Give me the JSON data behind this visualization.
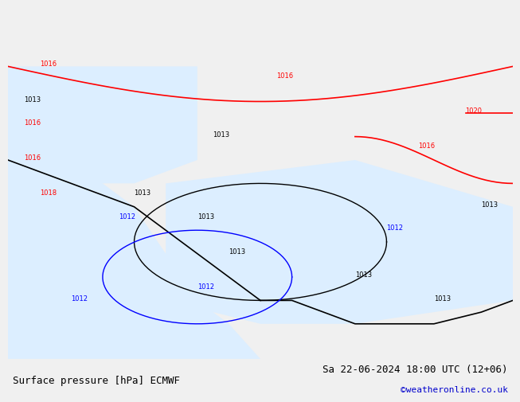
{
  "title_left": "Surface pressure [hPa] ECMWF",
  "title_right": "Sa 22-06-2024 18:00 UTC (12+06)",
  "copyright": "©weatheronline.co.uk",
  "bg_color": "#f0f0f0",
  "map_bg_color": "#c8e6c9",
  "ocean_color": "#ffffff",
  "label_fontsize": 9,
  "copyright_color": "#0000cc",
  "title_fontsize": 9
}
